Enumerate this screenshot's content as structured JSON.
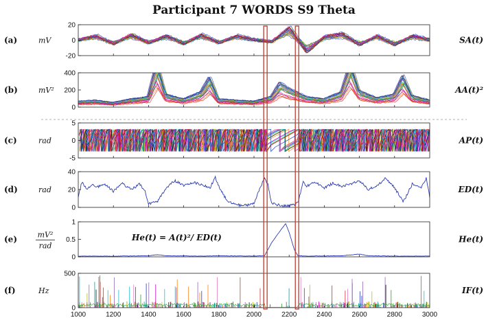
{
  "title": "Participant 7 WORDS S9 Theta",
  "formula": "He(t) = A(t)²/ ED(t)",
  "highlight_color": "#c0392b",
  "chart_data": {
    "type": "line",
    "x_range": [
      1000,
      3000
    ],
    "x_ticks": [
      "1000",
      "1200",
      "1400",
      "1600",
      "1800",
      "2000",
      "2200",
      "2400",
      "2600",
      "2800",
      "3000"
    ],
    "highlight_x": [
      2065,
      2245
    ],
    "panels": [
      {
        "id": "a",
        "label": "(a)",
        "unit": "mV",
        "right_label": "SA(t)",
        "ylim": [
          -20,
          20
        ],
        "y_ticks": [
          "20",
          "0",
          "-20"
        ],
        "y_tick_values": [
          20,
          0,
          -20
        ],
        "multi_trace": true,
        "series": [
          {
            "name": "",
            "x": [
              1000,
              1100,
              1200,
              1300,
              1400,
              1500,
              1600,
              1700,
              1800,
              1900,
              2000,
              2100,
              2200,
              2300,
              2400,
              2500,
              2600,
              2700,
              2800,
              2900,
              3000
            ],
            "values": [
              0,
              4,
              -4,
              5,
              -3,
              4,
              -4,
              5,
              -3,
              4,
              0,
              -2,
              12,
              -12,
              3,
              6,
              -5,
              4,
              -5,
              4,
              0
            ]
          }
        ]
      },
      {
        "id": "b",
        "label": "(b)",
        "unit": "mV²",
        "right_label": "AA(t)²",
        "ylim": [
          0,
          400
        ],
        "y_ticks": [
          "400",
          "200",
          "0"
        ],
        "y_tick_values": [
          400,
          200,
          0
        ],
        "multi_trace": true,
        "series": [
          {
            "name": "",
            "x": [
              1000,
              1100,
              1200,
              1300,
              1400,
              1450,
              1500,
              1600,
              1700,
              1750,
              1800,
              1900,
              2000,
              2100,
              2150,
              2200,
              2300,
              2400,
              2500,
              2550,
              2600,
              2700,
              2800,
              2850,
              2900,
              3000
            ],
            "values": [
              40,
              50,
              30,
              60,
              80,
              370,
              100,
              60,
              120,
              250,
              60,
              50,
              40,
              80,
              200,
              150,
              80,
              60,
              120,
              370,
              130,
              70,
              100,
              260,
              90,
              50
            ]
          }
        ]
      },
      {
        "id": "c",
        "label": "(c)",
        "unit": "rad",
        "right_label": "AP(t)",
        "ylim": [
          -5,
          5
        ],
        "y_ticks": [
          "5",
          "0",
          "-5"
        ],
        "y_tick_values": [
          5,
          0,
          -5
        ],
        "multi_trace": true,
        "series": [
          {
            "name": "",
            "x": [
              1000,
              3000
            ],
            "values": [
              -3.14,
              3.14
            ]
          }
        ]
      },
      {
        "id": "d",
        "label": "(d)",
        "unit": "rad",
        "right_label": "ED(t)",
        "ylim": [
          0,
          40
        ],
        "y_ticks": [
          "40",
          "20",
          "0"
        ],
        "y_tick_values": [
          40,
          20,
          0
        ],
        "multi_trace": false,
        "series": [
          {
            "name": "",
            "x": [
              1000,
              1020,
              1050,
              1080,
              1100,
              1150,
              1200,
              1250,
              1300,
              1350,
              1380,
              1400,
              1450,
              1500,
              1550,
              1600,
              1650,
              1700,
              1750,
              1780,
              1800,
              1850,
              1900,
              1950,
              2000,
              2030,
              2060,
              2080,
              2100,
              2150,
              2200,
              2230,
              2250,
              2280,
              2300,
              2350,
              2400,
              2450,
              2500,
              2550,
              2600,
              2650,
              2700,
              2750,
              2800,
              2850,
              2900,
              2950,
              2980,
              3000
            ],
            "values": [
              12,
              28,
              20,
              26,
              22,
              26,
              18,
              27,
              20,
              26,
              18,
              4,
              6,
              22,
              30,
              24,
              28,
              26,
              22,
              34,
              24,
              6,
              3,
              2,
              5,
              20,
              33,
              25,
              5,
              2,
              2,
              3,
              5,
              28,
              24,
              28,
              22,
              27,
              24,
              26,
              30,
              20,
              24,
              33,
              22,
              6,
              26,
              22,
              33,
              12
            ]
          }
        ]
      },
      {
        "id": "e",
        "label": "(e)",
        "unit": "mV²/rad",
        "unit_num": "mV²",
        "unit_den": "rad",
        "right_label": "He(t)",
        "ylim": [
          0,
          1
        ],
        "y_ticks": [
          "1",
          "0.5",
          "0"
        ],
        "y_tick_values": [
          1,
          0.5,
          0
        ],
        "multi_trace": false,
        "series": [
          {
            "name": "",
            "x": [
              1000,
              1200,
              1400,
              1450,
              1500,
              1700,
              1800,
              2000,
              2060,
              2100,
              2150,
              2180,
              2200,
              2230,
              2250,
              2300,
              2500,
              2600,
              2650,
              2800,
              3000
            ],
            "values": [
              0.02,
              0.02,
              0.03,
              0.06,
              0.03,
              0.02,
              0.03,
              0.02,
              0.03,
              0.4,
              0.75,
              0.95,
              0.7,
              0.2,
              0.03,
              0.02,
              0.03,
              0.08,
              0.03,
              0.02,
              0.02
            ]
          }
        ]
      },
      {
        "id": "f",
        "label": "(f)",
        "unit": "Hz",
        "right_label": "IF(t)",
        "ylim": [
          0,
          500
        ],
        "y_ticks": [
          "500",
          "0"
        ],
        "y_tick_values": [
          500,
          0
        ],
        "multi_trace": true,
        "series": [
          {
            "name": "",
            "x": [
              1000,
              3000
            ],
            "values": [
              0,
              0
            ]
          }
        ]
      }
    ]
  }
}
